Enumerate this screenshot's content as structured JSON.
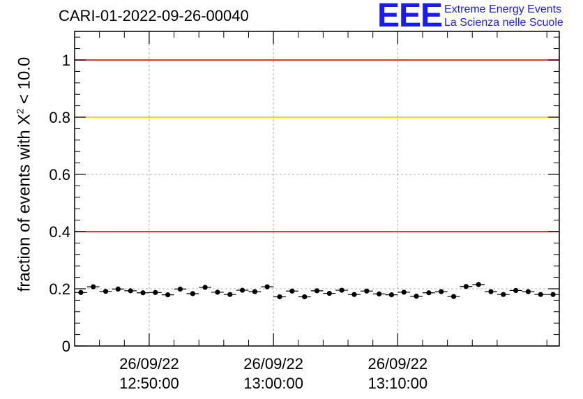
{
  "header": {
    "title": "CARI-01-2022-09-26-00040",
    "logo_mark": "EEE",
    "logo_line1": "Extreme Energy Events",
    "logo_line2": "La Scienza nelle Scuole"
  },
  "colors": {
    "logo_blue": "#1a1aff",
    "red_line": "#e31a1c",
    "yellow_line": "#ffcc00",
    "marker": "#000000",
    "grid": "#9a9a9a"
  },
  "chart_data": {
    "type": "scatter",
    "title": "CARI-01-2022-09-26-00040",
    "xlabel": "",
    "ylabel_parts": [
      "fraction of events with X",
      "2",
      " < 10.0"
    ],
    "x_axis": {
      "type": "time",
      "start": "26/09/22 12:44:00",
      "end": "26/09/22 13:23:00",
      "ticks": [
        {
          "time": "12:50:00",
          "line1": "26/09/22",
          "line2": "12:50:00"
        },
        {
          "time": "13:00:00",
          "line1": "26/09/22",
          "line2": "13:00:00"
        },
        {
          "time": "13:10:00",
          "line1": "26/09/22",
          "line2": "13:10:00"
        }
      ]
    },
    "ylim": [
      0,
      1.1
    ],
    "yticks": [
      "0",
      "0.2",
      "0.4",
      "0.6",
      "0.8",
      "1"
    ],
    "grid": true,
    "reference_lines": [
      {
        "y": 1.0,
        "color": "#e31a1c"
      },
      {
        "y": 0.8,
        "color": "#ffcc00"
      },
      {
        "y": 0.4,
        "color": "#e31a1c"
      }
    ],
    "bin_width_minutes": 1,
    "x": [
      "12:44:00",
      "12:45:00",
      "12:46:00",
      "12:47:00",
      "12:48:00",
      "12:49:00",
      "12:50:00",
      "12:51:00",
      "12:52:00",
      "12:53:00",
      "12:54:00",
      "12:55:00",
      "12:56:00",
      "12:57:00",
      "12:58:00",
      "12:59:00",
      "13:00:00",
      "13:01:00",
      "13:02:00",
      "13:03:00",
      "13:04:00",
      "13:05:00",
      "13:06:00",
      "13:07:00",
      "13:08:00",
      "13:09:00",
      "13:10:00",
      "13:11:00",
      "13:12:00",
      "13:13:00",
      "13:14:00",
      "13:15:00",
      "13:16:00",
      "13:17:00",
      "13:18:00",
      "13:19:00",
      "13:20:00",
      "13:21:00",
      "13:22:00"
    ],
    "values": [
      0.187,
      0.207,
      0.191,
      0.199,
      0.193,
      0.186,
      0.187,
      0.179,
      0.199,
      0.183,
      0.205,
      0.188,
      0.18,
      0.195,
      0.19,
      0.207,
      0.172,
      0.192,
      0.172,
      0.193,
      0.184,
      0.195,
      0.18,
      0.192,
      0.182,
      0.179,
      0.188,
      0.174,
      0.186,
      0.19,
      0.173,
      0.208,
      0.215,
      0.19,
      0.18,
      0.194,
      0.19,
      0.18,
      0.18
    ],
    "errors": [
      0.006,
      0.006,
      0.006,
      0.006,
      0.006,
      0.006,
      0.006,
      0.006,
      0.006,
      0.006,
      0.006,
      0.006,
      0.006,
      0.006,
      0.006,
      0.006,
      0.006,
      0.006,
      0.006,
      0.006,
      0.006,
      0.006,
      0.006,
      0.006,
      0.006,
      0.006,
      0.006,
      0.006,
      0.006,
      0.006,
      0.006,
      0.006,
      0.006,
      0.006,
      0.006,
      0.006,
      0.006,
      0.006,
      0.006
    ]
  }
}
